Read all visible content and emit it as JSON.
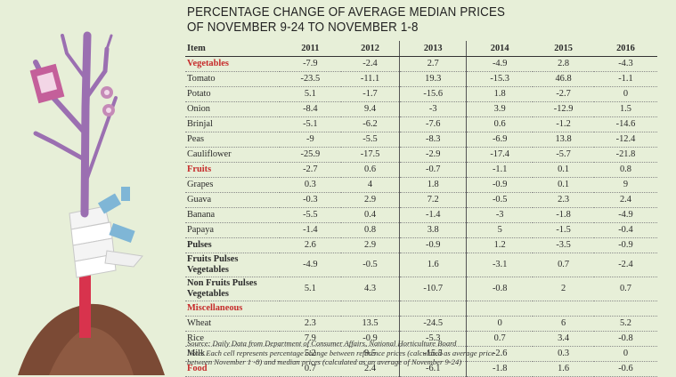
{
  "title_line1": "PERCENTAGE CHANGE OF AVERAGE MEDIAN PRICES",
  "title_line2": "OF NOVEMBER 9-24 TO NOVEMBER 1-8",
  "source": "Source: Daily Data from Department of Consumer Affairs, National Horticulture Board",
  "note_line1": "Note: Each cell represents percentage change between reference prices (calculated as average price",
  "note_line2": "between November 1 -8) and median prices (calculated as an average of November 9-24)",
  "colors": {
    "category_red": "#c62b2b",
    "background": "#e7efd8"
  },
  "chart_data": {
    "type": "table",
    "columns": [
      "Item",
      "2011",
      "2012",
      "2013",
      "2014",
      "2015",
      "2016"
    ],
    "rows": [
      {
        "item": "Vegetables",
        "style": "red",
        "values": [
          "-7.9",
          "-2.4",
          "2.7",
          "-4.9",
          "2.8",
          "-4.3"
        ]
      },
      {
        "item": "Tomato",
        "style": "",
        "values": [
          "-23.5",
          "-11.1",
          "19.3",
          "-15.3",
          "46.8",
          "-1.1"
        ]
      },
      {
        "item": "Potato",
        "style": "",
        "values": [
          "5.1",
          "-1.7",
          "-15.6",
          "1.8",
          "-2.7",
          "0"
        ]
      },
      {
        "item": "Onion",
        "style": "",
        "values": [
          "-8.4",
          "9.4",
          "-3",
          "3.9",
          "-12.9",
          "1.5"
        ]
      },
      {
        "item": "Brinjal",
        "style": "",
        "values": [
          "-5.1",
          "-6.2",
          "-7.6",
          "0.6",
          "-1.2",
          "-14.6"
        ]
      },
      {
        "item": "Peas",
        "style": "",
        "values": [
          "-9",
          "-5.5",
          "-8.3",
          "-6.9",
          "13.8",
          "-12.4"
        ]
      },
      {
        "item": "Cauliflower",
        "style": "",
        "values": [
          "-25.9",
          "-17.5",
          "-2.9",
          "-17.4",
          "-5.7",
          "-21.8"
        ]
      },
      {
        "item": "Fruits",
        "style": "red",
        "values": [
          "-2.7",
          "0.6",
          "-0.7",
          "-1.1",
          "0.1",
          "0.8"
        ]
      },
      {
        "item": "Grapes",
        "style": "",
        "values": [
          "0.3",
          "4",
          "1.8",
          "-0.9",
          "0.1",
          "9"
        ]
      },
      {
        "item": "Guava",
        "style": "",
        "values": [
          "-0.3",
          "2.9",
          "7.2",
          "-0.5",
          "2.3",
          "2.4"
        ]
      },
      {
        "item": "Banana",
        "style": "",
        "values": [
          "-5.5",
          "0.4",
          "-1.4",
          "-3",
          "-1.8",
          "-4.9"
        ]
      },
      {
        "item": "Papaya",
        "style": "",
        "values": [
          "-1.4",
          "0.8",
          "3.8",
          "5",
          "-1.5",
          "-0.4"
        ]
      },
      {
        "item": "Pulses",
        "style": "bold",
        "values": [
          "2.6",
          "2.9",
          "-0.9",
          "1.2",
          "-3.5",
          "-0.9"
        ]
      },
      {
        "item": "Fruits Pulses Vegetables",
        "style": "bold-tall",
        "values": [
          "-4.9",
          "-0.5",
          "1.6",
          "-3.1",
          "0.7",
          "-2.4"
        ]
      },
      {
        "item": "Non Fruits Pulses Vegetables",
        "style": "bold-tall",
        "values": [
          "5.1",
          "4.3",
          "-10.7",
          "-0.8",
          "2",
          "0.7"
        ]
      },
      {
        "item": "Miscellaneous",
        "style": "red",
        "values": [
          "",
          "",
          "",
          "",
          "",
          ""
        ]
      },
      {
        "item": "Wheat",
        "style": "",
        "values": [
          "2.3",
          "13.5",
          "-24.5",
          "0",
          "6",
          "5.2"
        ]
      },
      {
        "item": "Rice",
        "style": "",
        "values": [
          "7.9",
          "-0.9",
          "-5.3",
          "0.7",
          "3.4",
          "-0.8"
        ]
      },
      {
        "item": "Milk",
        "style": "",
        "values": [
          "5.2",
          "9.5",
          "-15.5",
          "-2.6",
          "0.3",
          "0"
        ]
      },
      {
        "item": "Food",
        "style": "red",
        "values": [
          "0.7",
          "2.4",
          "-6.1",
          "-1.8",
          "1.6",
          "-0.6"
        ]
      }
    ]
  }
}
